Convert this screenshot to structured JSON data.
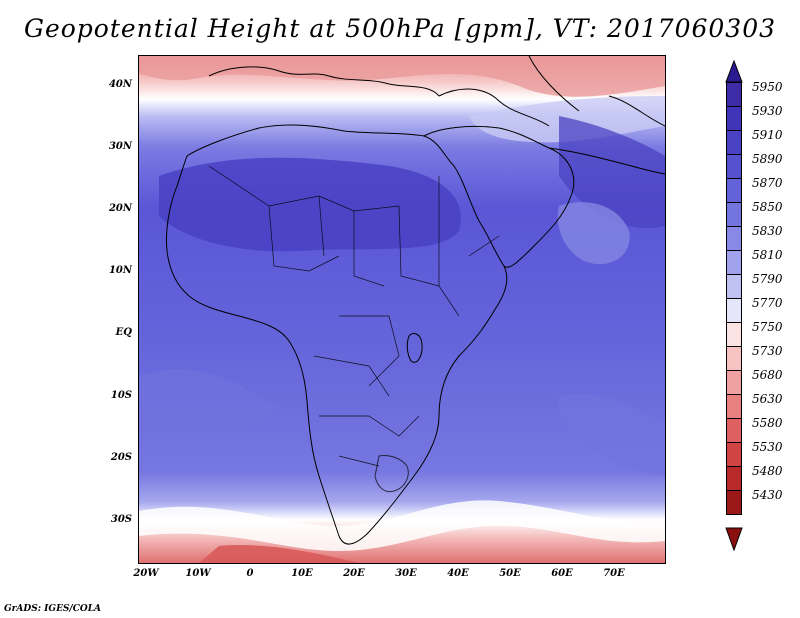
{
  "title": "Geopotential Height at 500hPa [gpm], VT: 2017060303",
  "footer": "GrADS: IGES/COLA",
  "map": {
    "lat_labels": [
      "40N",
      "30N",
      "20N",
      "10N",
      "EQ",
      "10S",
      "20S",
      "30S"
    ],
    "lon_labels": [
      "20W",
      "10W",
      "0",
      "10E",
      "20E",
      "30E",
      "40E",
      "50E",
      "60E",
      "70E"
    ]
  },
  "colorbar": {
    "labels": [
      "5950",
      "5930",
      "5910",
      "5890",
      "5870",
      "5850",
      "5830",
      "5810",
      "5790",
      "5770",
      "5750",
      "5730",
      "5680",
      "5630",
      "5580",
      "5530",
      "5480",
      "5430"
    ],
    "colors": [
      "#3e2ba6",
      "#4035b8",
      "#4a42c4",
      "#5551cf",
      "#6362d8",
      "#7474df",
      "#8889e6",
      "#a0a2ed",
      "#bfc1f3",
      "#e6e6fa",
      "#fbe3e3",
      "#f6c2c2",
      "#efa0a0",
      "#e88080",
      "#df6060",
      "#d04444",
      "#b82a2a",
      "#9a1818"
    ],
    "top_arrow_color": "#2c1a90",
    "bottom_arrow_color": "#8a1010"
  }
}
